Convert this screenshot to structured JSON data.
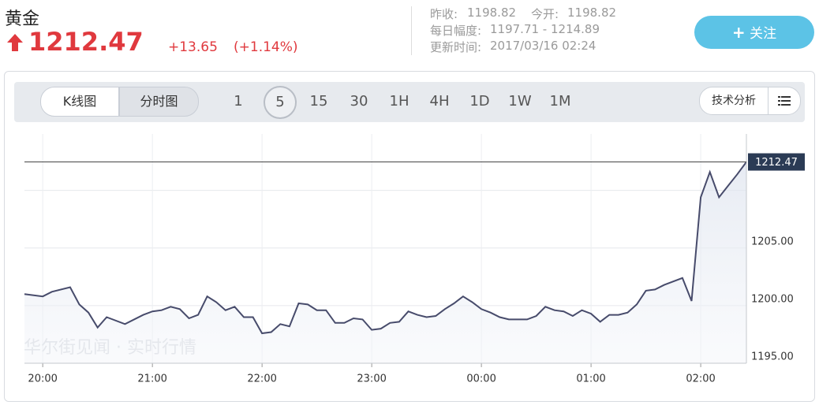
{
  "header": {
    "name": "黄金",
    "price": "1212.47",
    "change": "+13.65",
    "change_pct": "(+1.14%)",
    "prev_close_label": "昨收:",
    "prev_close": "1198.82",
    "open_label": "今开:",
    "open": "1198.82",
    "range_label": "每日幅度:",
    "range": "1197.71 - 1214.89",
    "updated_label": "更新时间:",
    "updated": "2017/03/16 02:24",
    "follow": "关注"
  },
  "toolbar": {
    "chart_modes": [
      "K线图",
      "分时图"
    ],
    "intervals": [
      "1",
      "5",
      "15",
      "30",
      "1H",
      "4H",
      "1D",
      "1W",
      "1M"
    ],
    "analysis": "技术分析"
  },
  "chart_data": {
    "type": "line",
    "watermark": "华尔街见闻 · 实时行情",
    "x": [
      -10,
      0,
      5,
      15,
      20,
      25,
      30,
      35,
      45,
      55,
      60,
      65,
      70,
      75,
      80,
      85,
      90,
      95,
      100,
      105,
      110,
      115,
      120,
      125,
      130,
      135,
      140,
      145,
      150,
      155,
      160,
      165,
      170,
      175,
      180,
      185,
      190,
      195,
      200,
      205,
      210,
      215,
      220,
      225,
      230,
      235,
      240,
      245,
      250,
      255,
      260,
      265,
      270,
      275,
      280,
      285,
      290,
      295,
      300,
      305,
      310,
      315,
      320,
      325,
      330,
      335,
      340,
      350,
      355,
      360,
      365,
      370,
      375,
      380,
      385
    ],
    "values": [
      1201.0,
      1200.8,
      1201.2,
      1201.6,
      1200.1,
      1199.4,
      1198.1,
      1199.0,
      1198.4,
      1199.2,
      1199.5,
      1199.6,
      1199.9,
      1199.7,
      1198.9,
      1199.2,
      1200.8,
      1200.3,
      1199.6,
      1199.9,
      1199.0,
      1199.0,
      1197.6,
      1197.7,
      1198.4,
      1198.2,
      1200.2,
      1200.1,
      1199.6,
      1199.6,
      1198.5,
      1198.5,
      1198.9,
      1198.8,
      1197.9,
      1198.0,
      1198.5,
      1198.6,
      1199.5,
      1199.2,
      1199.0,
      1199.1,
      1199.7,
      1200.2,
      1200.8,
      1200.3,
      1199.7,
      1199.4,
      1199.0,
      1198.8,
      1198.8,
      1198.8,
      1199.1,
      1199.9,
      1199.6,
      1199.5,
      1199.1,
      1199.6,
      1199.3,
      1198.6,
      1199.2,
      1199.2,
      1199.4,
      1200.1,
      1201.3,
      1201.4,
      1201.8,
      1202.4,
      1200.4,
      1209.4,
      1211.6,
      1209.4,
      1210.4,
      1211.4,
      1212.47
    ],
    "color": "#474b6b",
    "last_price": 1212.47,
    "xlim": [
      -10,
      385
    ],
    "ylim": [
      1195,
      1214.9
    ],
    "xticks": [
      {
        "value": 0,
        "label": "20:00"
      },
      {
        "value": 60,
        "label": "21:00"
      },
      {
        "value": 120,
        "label": "22:00"
      },
      {
        "value": 180,
        "label": "23:00"
      },
      {
        "value": 240,
        "label": "00:00"
      },
      {
        "value": 300,
        "label": "01:00"
      },
      {
        "value": 360,
        "label": "02:00"
      }
    ],
    "yticks": [
      {
        "value": 1195,
        "label": "1195.00"
      },
      {
        "value": 1200,
        "label": "1200.00"
      },
      {
        "value": 1205,
        "label": "1205.00"
      },
      {
        "value": 1210,
        "label": null
      }
    ],
    "grid": true
  }
}
